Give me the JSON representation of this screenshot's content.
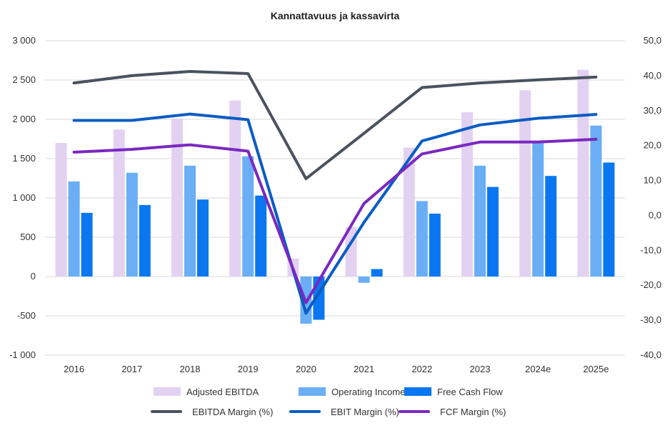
{
  "chart_data": {
    "type": "bar",
    "title": "Kannattavuus ja kassavirta",
    "categories": [
      "2016",
      "2017",
      "2018",
      "2019",
      "2020",
      "2021",
      "2022",
      "2023",
      "2024e",
      "2025e"
    ],
    "bar_series": [
      {
        "name": "Adjusted EBITDA",
        "color": "#e3d1f2",
        "values": [
          1700,
          1870,
          2010,
          2240,
          230,
          630,
          1640,
          2090,
          2370,
          2630
        ]
      },
      {
        "name": "Operating Income",
        "color": "#6aaef5",
        "values": [
          1210,
          1320,
          1410,
          1530,
          -600,
          -80,
          960,
          1410,
          1700,
          1920
        ]
      },
      {
        "name": "Free Cash Flow",
        "color": "#0a77f0",
        "values": [
          810,
          910,
          980,
          1030,
          -550,
          95,
          800,
          1140,
          1280,
          1450
        ]
      }
    ],
    "line_series": [
      {
        "name": "EBITDA Margin (%)",
        "color": "#4a5260",
        "values": [
          37.9,
          40.0,
          41.2,
          40.6,
          10.5,
          23.5,
          36.6,
          37.9,
          38.8,
          39.6
        ]
      },
      {
        "name": "EBIT Margin (%)",
        "color": "#0a5cc4",
        "values": [
          27.2,
          27.2,
          29.0,
          27.4,
          -28.0,
          -2.0,
          21.3,
          25.9,
          27.8,
          28.9
        ]
      },
      {
        "name": "FCF Margin (%)",
        "color": "#7a28c0",
        "values": [
          18.1,
          18.9,
          20.2,
          18.4,
          -25.0,
          3.4,
          17.6,
          21.0,
          21.0,
          21.8
        ]
      }
    ],
    "y_left": {
      "min": -1000,
      "max": 3000,
      "ticks": [
        -1000,
        -500,
        0,
        500,
        1000,
        1500,
        2000,
        2500,
        3000
      ],
      "tick_labels": [
        "-1 000",
        "-500",
        "0",
        "500",
        "1 000",
        "1 500",
        "2 000",
        "2 500",
        "3 000"
      ]
    },
    "y_right": {
      "min": -40,
      "max": 50,
      "ticks": [
        -40,
        -30,
        -20,
        -10,
        0,
        10,
        20,
        30,
        40,
        50
      ],
      "tick_labels": [
        "-40,0",
        "-30,0",
        "-20,0",
        "-10,0",
        "0,0",
        "10,0",
        "20,0",
        "30,0",
        "40,0",
        "50,0"
      ]
    },
    "grid": true,
    "legend_position": "bottom"
  }
}
